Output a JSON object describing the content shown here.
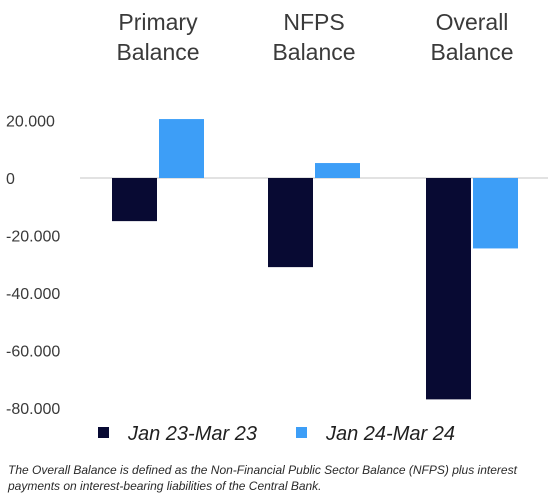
{
  "colors": {
    "series_1": "#080a33",
    "series_2": "#3d9ef7",
    "zero_line": "#d9d9d9"
  },
  "chart_data": {
    "type": "bar",
    "title": "",
    "xlabel": "",
    "ylabel": "",
    "categories": [
      [
        "Primary",
        "Balance"
      ],
      [
        "NFPS",
        "Balance"
      ],
      [
        "Overall",
        "Balance"
      ]
    ],
    "series": [
      {
        "name": "Jan 23-Mar 23",
        "values": [
          -15000,
          -31000,
          -77000
        ]
      },
      {
        "name": "Jan 24-Mar 24",
        "values": [
          20500,
          5200,
          -24500
        ]
      }
    ],
    "yticks": [
      20000,
      0,
      -20000,
      -40000,
      -60000,
      -80000
    ],
    "ytick_labels": [
      "20.000",
      "0",
      "-20.000",
      "-40.000",
      "-60.000",
      "-80.000"
    ],
    "ylim": [
      -80000,
      20000
    ],
    "grid": false,
    "legend_position": "bottom"
  },
  "footnote": "The Overall Balance is defined as the Non-Financial Public Sector Balance (NFPS) plus interest payments on interest-bearing liabilities of the Central Bank."
}
